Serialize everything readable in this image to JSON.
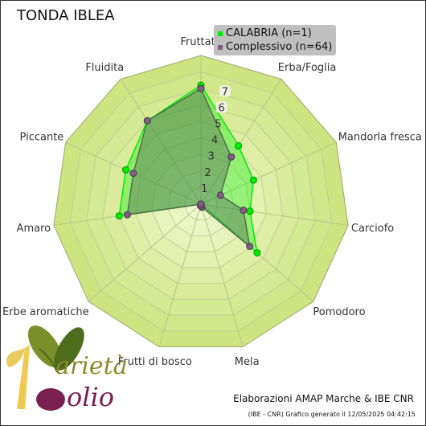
{
  "title": "TONDA IBLEA",
  "legend": {
    "items": [
      {
        "label": "CALABRIA  (n=1)",
        "color": "#00ee00"
      },
      {
        "label": "Complessivo (n=64)",
        "color": "#7f5f7f"
      }
    ]
  },
  "footer": {
    "line1": "Elaborazioni AMAP Marche & IBE CNR",
    "line2": "(IBE - CNR) Grafico generato il 12/05/2025 04:42:15"
  },
  "logo": {
    "text_top": "arietà",
    "text_bottom": "olio"
  },
  "chart_data": {
    "type": "radar",
    "axes": [
      "Fruttato",
      "Erba/Foglia",
      "Mandorla fresca",
      "Carciofo",
      "Pomodoro",
      "Mela",
      "Frutti di bosco",
      "Erbe aromatiche",
      "Amaro",
      "Piccante",
      "Fluidita"
    ],
    "scale": {
      "min": 0,
      "max": 9,
      "ticks": [
        1,
        2,
        3,
        4,
        5,
        6,
        7
      ]
    },
    "series": [
      {
        "name": "CALABRIA  (n=1)",
        "values": [
          7.2,
          4.2,
          3.5,
          3.0,
          4.5,
          0.0,
          0.0,
          0.0,
          5.0,
          5.0,
          6.0
        ],
        "color": "#00ee00"
      },
      {
        "name": "Complessivo (n=64)",
        "values": [
          7.0,
          3.4,
          1.3,
          2.6,
          3.9,
          0.2,
          0.1,
          0.0,
          4.5,
          4.5,
          6.0
        ],
        "color": "#7f5f7f"
      }
    ]
  }
}
